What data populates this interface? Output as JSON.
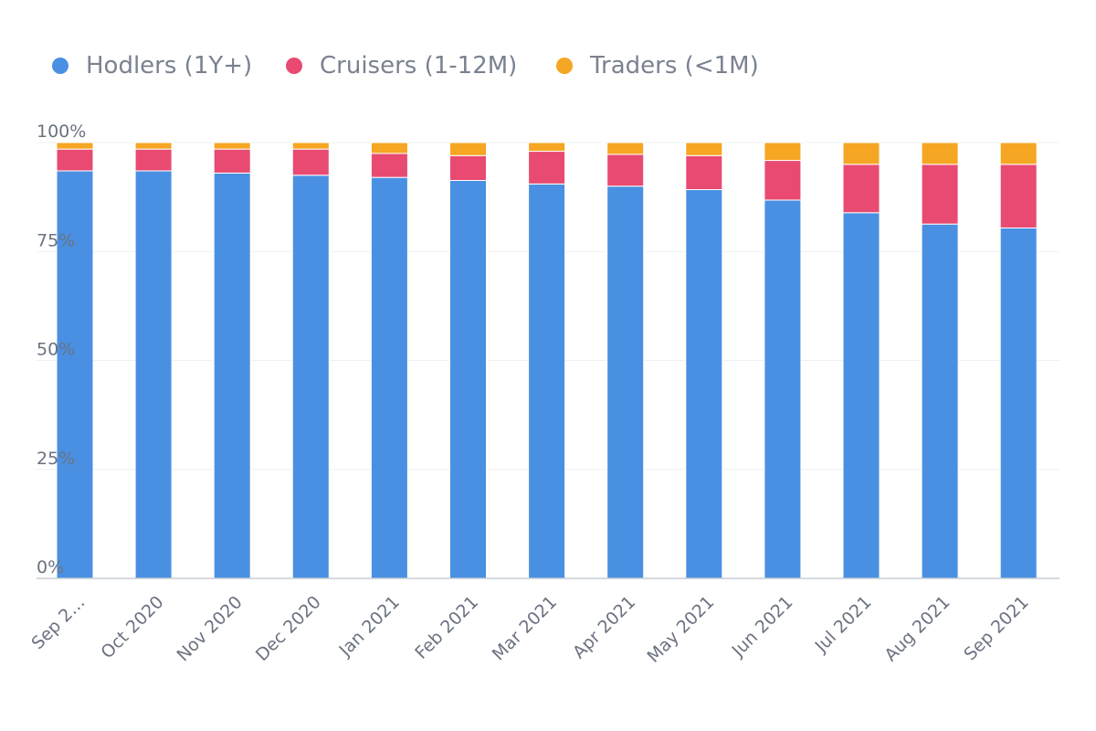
{
  "colors": {
    "hodlers": "#4a90e2",
    "cruisers": "#e84a72",
    "traders": "#f5a623"
  },
  "chart_data": {
    "type": "bar",
    "stacked": true,
    "categories": [
      "Sep 2…",
      "Oct 2020",
      "Nov 2020",
      "Dec 2020",
      "Jan 2021",
      "Feb 2021",
      "Mar 2021",
      "Apr 2021",
      "May 2021",
      "Jun 2021",
      "Jul 2021",
      "Aug 2021",
      "Sep 2021"
    ],
    "series": [
      {
        "name": "Hodlers (1Y+)",
        "color": "#4a90e2",
        "values": [
          93.5,
          93.5,
          93.0,
          92.5,
          92.0,
          91.3,
          90.5,
          90.0,
          89.2,
          86.8,
          83.9,
          81.3,
          80.4
        ]
      },
      {
        "name": "Cruisers (1-12M)",
        "color": "#e84a72",
        "values": [
          5.0,
          5.0,
          5.5,
          6.0,
          5.5,
          5.7,
          7.5,
          7.3,
          7.8,
          9.1,
          11.1,
          13.7,
          14.6
        ]
      },
      {
        "name": "Traders (<1M)",
        "color": "#f5a623",
        "values": [
          1.5,
          1.5,
          1.5,
          1.5,
          2.5,
          3.0,
          2.0,
          2.7,
          3.0,
          4.1,
          5.0,
          5.0,
          5.0
        ]
      }
    ],
    "y_ticks": [
      "0%",
      "25%",
      "50%",
      "75%",
      "100%"
    ],
    "y_tick_values": [
      0,
      25,
      50,
      75,
      100
    ],
    "ylim": [
      0,
      100
    ],
    "legend_position": "top-left",
    "grid": true
  }
}
